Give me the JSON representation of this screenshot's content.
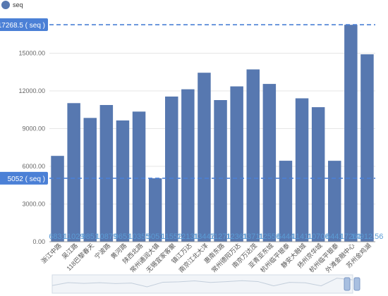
{
  "chart_data": {
    "type": "bar",
    "legend": {
      "label": "seq",
      "placement": "top-left",
      "color": "#5778B0"
    },
    "categories": [
      "浙江中路",
      "吴江路",
      "118巴黎春天",
      "宁波路",
      "黄河路",
      "陕西北路",
      "常州通润大镇",
      "无锡宜家客聚",
      "镇江万达",
      "南京江北大洋",
      "惠南东路",
      "常州德阳万达",
      "南京万达茂",
      "亚青亚东城",
      "杭州临平银泰",
      "静安大融城",
      "扬州京华城",
      "杭州临平银泰",
      "外滩金融中心",
      "苏州金鸡湖"
    ],
    "value_labels": [
      "6831",
      "11029",
      "9851",
      "10879",
      "9651",
      "10355",
      "5051",
      "11552",
      "12131",
      "13447",
      "11271",
      "12361",
      "13711",
      "12556",
      "6444",
      "11411",
      "10706",
      "6441",
      "17261",
      "14912.56"
    ],
    "values": [
      6831,
      11029,
      9851,
      10879,
      9651,
      10355,
      5051,
      11552,
      12131,
      13447,
      11271,
      12361,
      13711,
      12556,
      6444,
      11411,
      10706,
      6441,
      17261,
      14912.56
    ],
    "ylim": [
      0,
      18000
    ],
    "yticks": [
      "0.00",
      "3000.00",
      "6000.00",
      "9000.00",
      "12000.00",
      "15000.00"
    ],
    "ytick_values": [
      0,
      3000,
      6000,
      9000,
      12000,
      15000
    ],
    "grid": true,
    "mark_lines": [
      {
        "label": "17268.5 ( seq )",
        "value": 17268.5
      },
      {
        "label": "5052 ( seq )",
        "value": 5052
      }
    ],
    "bar_color": "#5778B0",
    "markline_color": "#4B80D6",
    "datazoom": {
      "visible": true,
      "start": 0,
      "end": 1
    }
  }
}
